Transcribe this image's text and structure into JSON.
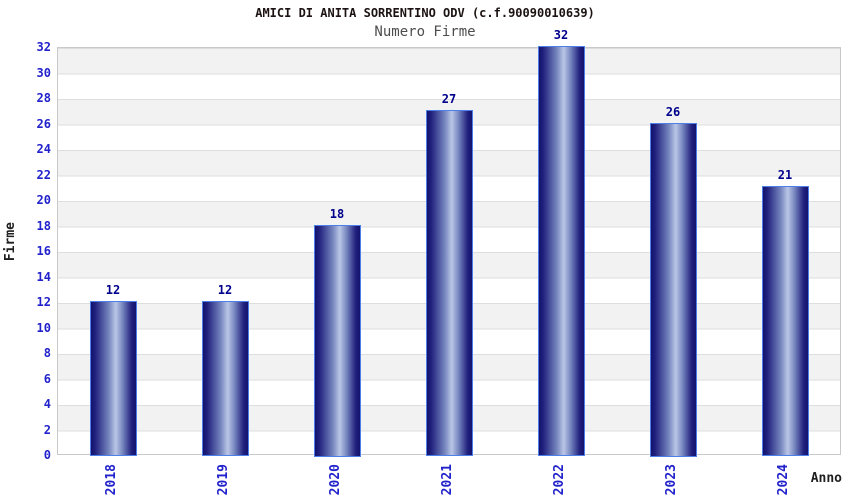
{
  "header": {
    "title": "AMICI DI ANITA SORRENTINO ODV (c.f.90090010639)",
    "subtitle": "Numero Firme"
  },
  "chart_data": {
    "type": "bar",
    "title": "AMICI DI ANITA SORRENTINO ODV (c.f.90090010639)",
    "subtitle": "Numero Firme",
    "categories": [
      "2018",
      "2019",
      "2020",
      "2021",
      "2022",
      "2023",
      "2024"
    ],
    "values": [
      12,
      12,
      18,
      27,
      32,
      26,
      21
    ],
    "bar_value_labels": [
      "12",
      "12",
      "18",
      "27",
      "32",
      "26",
      "21"
    ],
    "xlabel": "Anno",
    "ylabel": "Firme",
    "ylim": [
      0,
      32
    ],
    "ytick_step": 2,
    "legend": "none",
    "grid": "horizontal bands, alternating white/grey every 2 units",
    "colors": {
      "bar_dark": "#13136d",
      "bar_highlight": "#bac6e6",
      "bar_border": "#4d7fe8",
      "tick_label": "#2222cc",
      "value_label": "#00008b",
      "band_grey": "#f2f2f2",
      "band_white": "#ffffff",
      "gridline": "#dedede",
      "plot_border": "#c9c9c9",
      "title_color": "#1c1212",
      "subtitle_color": "#4d4d4d"
    }
  }
}
